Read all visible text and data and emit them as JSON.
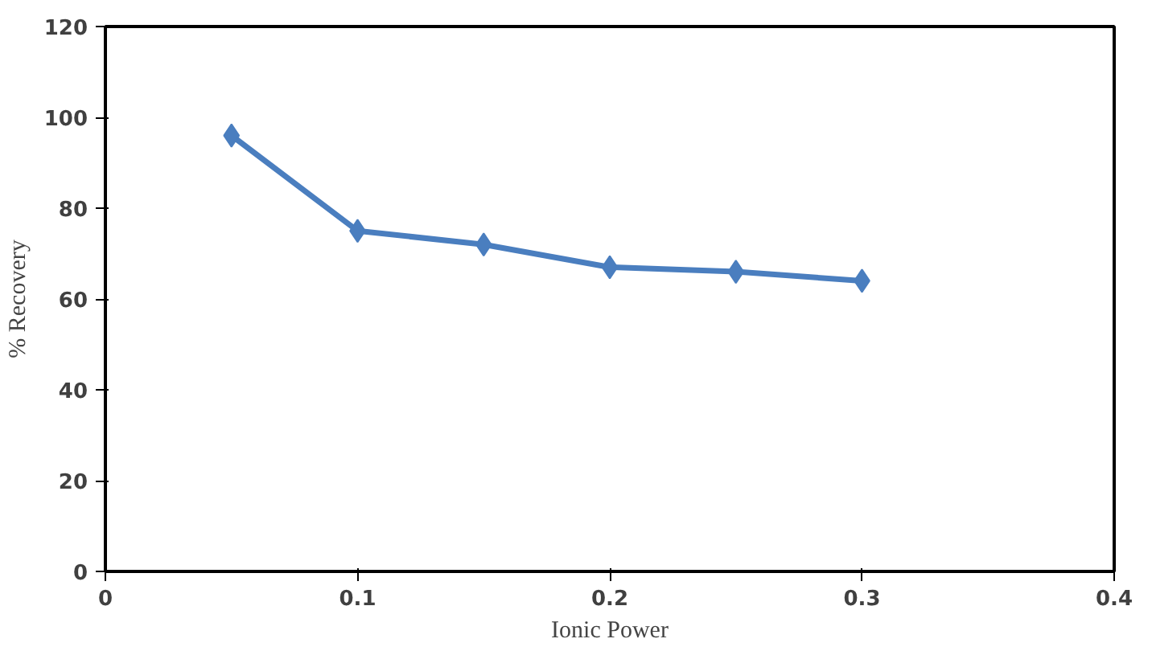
{
  "chart_data": {
    "type": "line",
    "xlabel": "Ionic Power",
    "ylabel": "% Recovery",
    "x": [
      0.05,
      0.1,
      0.15,
      0.2,
      0.25,
      0.3
    ],
    "series": [
      {
        "color": "#4a7ebf",
        "values": [
          96,
          75,
          72,
          67,
          66,
          64
        ]
      }
    ],
    "xlim": [
      0,
      0.4
    ],
    "xticks": [
      0,
      0.1,
      0.2,
      0.3,
      0.4
    ],
    "ylim": [
      0,
      120
    ],
    "yticks": [
      0,
      20,
      40,
      60,
      80,
      100,
      120
    ],
    "marker": "diamond",
    "line_style": "solid"
  }
}
